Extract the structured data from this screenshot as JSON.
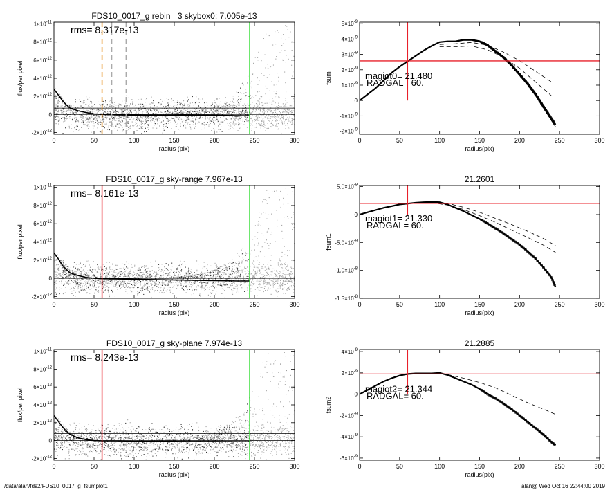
{
  "footer": {
    "left": "/data/alan/fds2/FDS10_0017_g_fsumplot1",
    "right": "alan@  Wed Oct 16 22:44:00 2019"
  },
  "colors": {
    "red": "#e8202a",
    "green": "#33dd33",
    "orange": "#e8962a",
    "grey": "#aaaaaa",
    "scatter_light": "#a0a0a0",
    "scatter_dark": "#333333"
  },
  "chart_data": [
    {
      "id": "left1",
      "type": "scatter",
      "title": "FDS10_0017_g rebin= 3    skybox0:  7.005e-13",
      "annotation": "rms= 8.317e-13",
      "xlabel": "radius (pix)",
      "ylabel": "flux/per pixel",
      "xlim": [
        0,
        300
      ],
      "ylim": [
        -2.2e-12,
        1.02e-11
      ],
      "xticks": [
        0,
        50,
        100,
        150,
        200,
        250,
        300
      ],
      "yticks": [
        {
          "v": 1e-11,
          "b": "1×10",
          "e": "-11"
        },
        {
          "v": 8e-12,
          "b": "8×10",
          "e": "-12"
        },
        {
          "v": 6e-12,
          "b": "6×10",
          "e": "-12"
        },
        {
          "v": 4e-12,
          "b": "4×10",
          "e": "-12"
        },
        {
          "v": 2e-12,
          "b": "2×10",
          "e": "-12"
        },
        {
          "v": 0,
          "b": "0",
          "e": ""
        },
        {
          "v": -2e-12,
          "b": "-2×10",
          "e": "-12"
        }
      ],
      "hlines": [
        0,
        7e-13
      ],
      "vlines": [
        {
          "x": 60,
          "color": "orange",
          "dash": true
        },
        {
          "x": 72,
          "color": "grey",
          "dash": true
        },
        {
          "x": 90,
          "color": "grey",
          "dash": true
        },
        {
          "x": 244,
          "color": "green",
          "dash": false
        }
      ],
      "profile": [
        [
          0,
          2.8e-12
        ],
        [
          5,
          2.2e-12
        ],
        [
          10,
          1.6e-12
        ],
        [
          15,
          1.1e-12
        ],
        [
          20,
          7e-13
        ],
        [
          30,
          4e-13
        ],
        [
          40,
          2e-13
        ],
        [
          50,
          5e-14
        ],
        [
          60,
          0
        ],
        [
          80,
          -5e-14
        ],
        [
          100,
          -8e-14
        ],
        [
          130,
          -1e-13
        ],
        [
          160,
          -8e-14
        ],
        [
          200,
          -1e-13
        ],
        [
          230,
          -1.4e-13
        ],
        [
          244,
          -1.5e-13
        ]
      ]
    },
    {
      "id": "left2",
      "type": "scatter",
      "title": "FDS10_0017_g sky-range  7.967e-13",
      "annotation": "rms= 8.161e-13",
      "xlabel": "radius (pix)",
      "ylabel": "flux/per pixel",
      "xlim": [
        0,
        300
      ],
      "ylim": [
        -2.2e-12,
        1.02e-11
      ],
      "xticks": [
        0,
        50,
        100,
        150,
        200,
        250,
        300
      ],
      "yticks": [
        {
          "v": 1e-11,
          "b": "1×10",
          "e": "-11"
        },
        {
          "v": 8e-12,
          "b": "8×10",
          "e": "-12"
        },
        {
          "v": 6e-12,
          "b": "6×10",
          "e": "-12"
        },
        {
          "v": 4e-12,
          "b": "4×10",
          "e": "-12"
        },
        {
          "v": 2e-12,
          "b": "2×10",
          "e": "-12"
        },
        {
          "v": 0,
          "b": "0",
          "e": ""
        },
        {
          "v": -2e-12,
          "b": "-2×10",
          "e": "-12"
        }
      ],
      "hlines": [
        0,
        8e-13
      ],
      "vlines": [
        {
          "x": 60,
          "color": "red",
          "dash": false
        },
        {
          "x": 244,
          "color": "green",
          "dash": false
        }
      ],
      "profile": [
        [
          0,
          2.8e-12
        ],
        [
          5,
          2.2e-12
        ],
        [
          10,
          1.5e-12
        ],
        [
          15,
          1e-12
        ],
        [
          20,
          6e-13
        ],
        [
          30,
          3e-13
        ],
        [
          40,
          1e-13
        ],
        [
          50,
          0
        ],
        [
          60,
          -5e-14
        ],
        [
          80,
          -8e-14
        ],
        [
          100,
          -1e-13
        ],
        [
          130,
          -1.5e-13
        ],
        [
          160,
          -2e-13
        ],
        [
          200,
          -2.5e-13
        ],
        [
          230,
          -3e-13
        ],
        [
          244,
          -3e-13
        ]
      ]
    },
    {
      "id": "left3",
      "type": "scatter",
      "title": "FDS10_0017_g sky-plane  7.974e-13",
      "annotation": "rms= 8.243e-13",
      "xlabel": "radius (pix)",
      "ylabel": "flux/per pixel",
      "xlim": [
        0,
        300
      ],
      "ylim": [
        -2.2e-12,
        1.02e-11
      ],
      "xticks": [
        0,
        50,
        100,
        150,
        200,
        250,
        300
      ],
      "yticks": [
        {
          "v": 1e-11,
          "b": "1×10",
          "e": "-11"
        },
        {
          "v": 8e-12,
          "b": "8×10",
          "e": "-12"
        },
        {
          "v": 6e-12,
          "b": "6×10",
          "e": "-12"
        },
        {
          "v": 4e-12,
          "b": "4×10",
          "e": "-12"
        },
        {
          "v": 2e-12,
          "b": "2×10",
          "e": "-12"
        },
        {
          "v": 0,
          "b": "0",
          "e": ""
        },
        {
          "v": -2e-12,
          "b": "-2×10",
          "e": "-12"
        }
      ],
      "hlines": [
        0,
        8e-13
      ],
      "vlines": [
        {
          "x": 60,
          "color": "red",
          "dash": false
        },
        {
          "x": 244,
          "color": "green",
          "dash": false
        }
      ],
      "profile": [
        [
          0,
          2.8e-12
        ],
        [
          5,
          2.2e-12
        ],
        [
          10,
          1.6e-12
        ],
        [
          15,
          1.1e-12
        ],
        [
          20,
          7e-13
        ],
        [
          30,
          3e-13
        ],
        [
          40,
          1e-13
        ],
        [
          50,
          0
        ],
        [
          60,
          -3e-14
        ],
        [
          80,
          -4e-14
        ],
        [
          100,
          -5e-14
        ],
        [
          130,
          -8e-14
        ],
        [
          160,
          -1e-13
        ],
        [
          200,
          -1e-13
        ],
        [
          230,
          -1.2e-13
        ],
        [
          244,
          -1.2e-13
        ]
      ]
    },
    {
      "id": "right1",
      "type": "line",
      "title": "",
      "annotations": [
        "magiot0=  21.480",
        "RADGAL=     60."
      ],
      "xlabel": "radius(pix)",
      "ylabel": "fsum",
      "xlim": [
        0,
        300
      ],
      "ylim": [
        -2.2e-09,
        5.1e-09
      ],
      "xticks": [
        0,
        50,
        100,
        150,
        200,
        250,
        300
      ],
      "yticks": [
        {
          "v": 5e-09,
          "b": "5×10",
          "e": "-9"
        },
        {
          "v": 4e-09,
          "b": "4×10",
          "e": "-9"
        },
        {
          "v": 3e-09,
          "b": "3×10",
          "e": "-9"
        },
        {
          "v": 2e-09,
          "b": "2×10",
          "e": "-9"
        },
        {
          "v": 1e-09,
          "b": "1×10",
          "e": "-9"
        },
        {
          "v": 0,
          "b": "0",
          "e": ""
        },
        {
          "v": -1e-09,
          "b": "-1×10",
          "e": "-9"
        },
        {
          "v": -2e-09,
          "b": "-2×10",
          "e": "-9"
        }
      ],
      "crosshair": {
        "x": 60,
        "y": 2.58e-09,
        "ymin": 0,
        "ymax": 5.1e-09
      },
      "curve": [
        [
          0,
          0
        ],
        [
          10,
          4e-10
        ],
        [
          20,
          8e-10
        ],
        [
          30,
          1.3e-09
        ],
        [
          40,
          1.8e-09
        ],
        [
          50,
          2.2e-09
        ],
        [
          60,
          2.55e-09
        ],
        [
          70,
          2.9e-09
        ],
        [
          80,
          3.25e-09
        ],
        [
          90,
          3.55e-09
        ],
        [
          100,
          3.8e-09
        ],
        [
          110,
          3.85e-09
        ],
        [
          120,
          3.85e-09
        ],
        [
          130,
          3.95e-09
        ],
        [
          140,
          3.95e-09
        ],
        [
          150,
          3.85e-09
        ],
        [
          160,
          3.6e-09
        ],
        [
          170,
          3.2e-09
        ],
        [
          180,
          2.8e-09
        ],
        [
          190,
          2.3e-09
        ],
        [
          200,
          1.7e-09
        ],
        [
          210,
          1.1e-09
        ],
        [
          220,
          4e-10
        ],
        [
          230,
          -4e-10
        ],
        [
          240,
          -1.2e-09
        ],
        [
          245,
          -1.6e-09
        ]
      ],
      "spread": 1.2e-10,
      "dashed": [
        [
          [
            100,
            3.65e-09
          ],
          [
            120,
            3.7e-09
          ],
          [
            140,
            3.78e-09
          ],
          [
            160,
            3.6e-09
          ],
          [
            180,
            3.15e-09
          ],
          [
            200,
            2.6e-09
          ],
          [
            220,
            1.9e-09
          ],
          [
            240,
            1.2e-09
          ]
        ],
        [
          [
            100,
            3.5e-09
          ],
          [
            120,
            3.5e-09
          ],
          [
            140,
            3.55e-09
          ],
          [
            160,
            3.3e-09
          ],
          [
            180,
            2.8e-09
          ],
          [
            200,
            2.1e-09
          ],
          [
            220,
            1.2e-09
          ],
          [
            240,
            3e-10
          ]
        ]
      ]
    },
    {
      "id": "right2",
      "type": "line",
      "title": "21.2601",
      "annotations": [
        "magiot1=  21.330",
        "RADGAL=     60."
      ],
      "xlabel": "radius(pix)",
      "ylabel": "fsum1",
      "xlim": [
        0,
        300
      ],
      "ylim": [
        -1.5e-08,
        5.2e-09
      ],
      "xticks": [
        0,
        50,
        100,
        150,
        200,
        250,
        300
      ],
      "yticks": [
        {
          "v": 5e-09,
          "b": "5.0×10",
          "e": "-9"
        },
        {
          "v": 0,
          "b": "0",
          "e": ""
        },
        {
          "v": -5e-09,
          "b": "-5.0×10",
          "e": "-9"
        },
        {
          "v": -1e-08,
          "b": "-1.0×10",
          "e": "-8"
        },
        {
          "v": -1.5e-08,
          "b": "-1.5×10",
          "e": "-8"
        }
      ],
      "crosshair": {
        "x": 60,
        "y": 2e-09,
        "ymin": 0,
        "ymax": 5.2e-09
      },
      "curve": [
        [
          0,
          0
        ],
        [
          10,
          4e-10
        ],
        [
          20,
          8e-10
        ],
        [
          30,
          1.2e-09
        ],
        [
          40,
          1.5e-09
        ],
        [
          50,
          1.8e-09
        ],
        [
          60,
          1.95e-09
        ],
        [
          70,
          2.1e-09
        ],
        [
          80,
          2.2e-09
        ],
        [
          90,
          2.25e-09
        ],
        [
          100,
          2.2e-09
        ],
        [
          110,
          1.8e-09
        ],
        [
          120,
          1.2e-09
        ],
        [
          130,
          6e-10
        ],
        [
          140,
          -1e-10
        ],
        [
          150,
          -8e-10
        ],
        [
          160,
          -1.6e-09
        ],
        [
          170,
          -2.5e-09
        ],
        [
          180,
          -3.4e-09
        ],
        [
          190,
          -4.4e-09
        ],
        [
          200,
          -5.4e-09
        ],
        [
          210,
          -6.6e-09
        ],
        [
          220,
          -7.9e-09
        ],
        [
          230,
          -9.5e-09
        ],
        [
          240,
          -1.13e-08
        ],
        [
          245,
          -1.3e-08
        ]
      ],
      "spread": 0,
      "dashed": [
        [
          [
            90,
            2.2e-09
          ],
          [
            110,
            2e-09
          ],
          [
            130,
            1.3e-09
          ],
          [
            150,
            4e-10
          ],
          [
            170,
            -7e-10
          ],
          [
            190,
            -1.8e-09
          ],
          [
            210,
            -3e-09
          ],
          [
            230,
            -4.3e-09
          ],
          [
            245,
            -5.6e-09
          ]
        ],
        [
          [
            90,
            2.1e-09
          ],
          [
            110,
            1.7e-09
          ],
          [
            130,
            9e-10
          ],
          [
            150,
            -2e-10
          ],
          [
            170,
            -1.4e-09
          ],
          [
            190,
            -2.8e-09
          ],
          [
            210,
            -4.1e-09
          ],
          [
            230,
            -5.5e-09
          ],
          [
            245,
            -6.8e-09
          ]
        ]
      ]
    },
    {
      "id": "right3",
      "type": "line",
      "title": "21.2885",
      "annotations": [
        "magiot2=  21.344",
        "RADGAL=     60."
      ],
      "xlabel": "radius(pix)",
      "ylabel": "fsum2",
      "xlim": [
        0,
        300
      ],
      "ylim": [
        -6.2e-09,
        4.2e-09
      ],
      "xticks": [
        0,
        50,
        100,
        150,
        200,
        250,
        300
      ],
      "yticks": [
        {
          "v": 4e-09,
          "b": "4×10",
          "e": "-9"
        },
        {
          "v": 2e-09,
          "b": "2×10",
          "e": "-9"
        },
        {
          "v": 0,
          "b": "0",
          "e": ""
        },
        {
          "v": -2e-09,
          "b": "-2×10",
          "e": "-9"
        },
        {
          "v": -4e-09,
          "b": "-4×10",
          "e": "-9"
        },
        {
          "v": -6e-09,
          "b": "-6×10",
          "e": "-9"
        }
      ],
      "crosshair": {
        "x": 60,
        "y": 1.9e-09,
        "ymin": 0,
        "ymax": 4.2e-09
      },
      "curve": [
        [
          0,
          0
        ],
        [
          10,
          4e-10
        ],
        [
          20,
          8e-10
        ],
        [
          30,
          1.2e-09
        ],
        [
          40,
          1.5e-09
        ],
        [
          50,
          1.75e-09
        ],
        [
          60,
          1.9e-09
        ],
        [
          70,
          1.95e-09
        ],
        [
          80,
          1.95e-09
        ],
        [
          90,
          1.95e-09
        ],
        [
          100,
          2e-09
        ],
        [
          110,
          1.8e-09
        ],
        [
          120,
          1.5e-09
        ],
        [
          130,
          1.2e-09
        ],
        [
          140,
          9e-10
        ],
        [
          150,
          5e-10
        ],
        [
          160,
          0
        ],
        [
          170,
          -4e-10
        ],
        [
          180,
          -9e-10
        ],
        [
          190,
          -1.4e-09
        ],
        [
          200,
          -2e-09
        ],
        [
          210,
          -2.6e-09
        ],
        [
          220,
          -3.2e-09
        ],
        [
          230,
          -3.8e-09
        ],
        [
          240,
          -4.5e-09
        ],
        [
          245,
          -4.8e-09
        ]
      ],
      "spread": 0,
      "dashed": [
        [
          [
            110,
            1.85e-09
          ],
          [
            130,
            1.5e-09
          ],
          [
            150,
            1.1e-09
          ],
          [
            170,
            6e-10
          ],
          [
            190,
            -1e-10
          ],
          [
            210,
            -8e-10
          ],
          [
            230,
            -1.4e-09
          ],
          [
            245,
            -1.9e-09
          ]
        ]
      ]
    }
  ]
}
